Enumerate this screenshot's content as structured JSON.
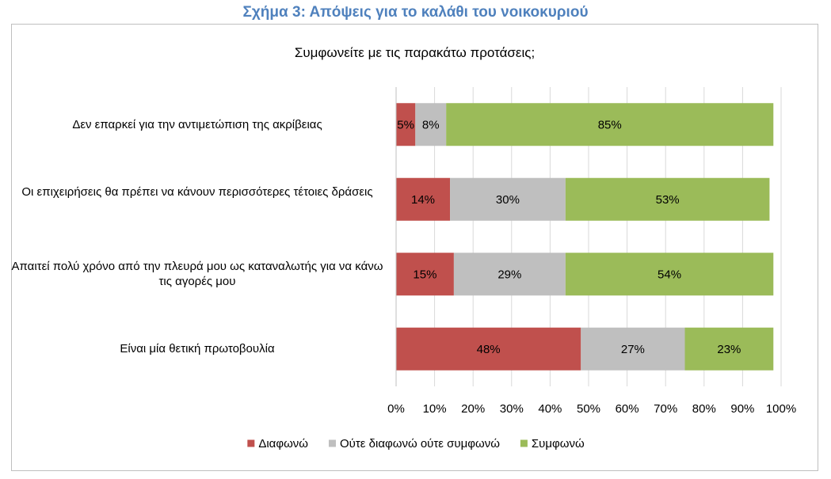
{
  "figure_title": "Σχήμα 3: Απόψεις για το καλάθι του νοικοκυριού",
  "chart_data": {
    "type": "bar",
    "orientation": "horizontal",
    "stacked": "percent",
    "title": "Συμφωνείτε με τις παρακάτω προτάσεις;",
    "categories": [
      "Δεν επαρκεί για την αντιμετώπιση της ακρίβειας",
      "Οι επιχειρήσεις θα πρέπει να κάνουν περισσότερες τέτοιες δράσεις",
      "Απαιτεί πολύ χρόνο από την πλευρά μου ως καταναλωτής για να κάνω τις αγορές μου",
      "Είναι μία θετική πρωτοβουλία"
    ],
    "series": [
      {
        "name": "Διαφωνώ",
        "color": "#c0504d",
        "values": [
          5,
          14,
          15,
          48
        ],
        "labels": [
          "5%",
          "14%",
          "15%",
          "48%"
        ]
      },
      {
        "name": "Ούτε διαφωνώ ούτε συμφωνώ",
        "color": "#bfbfbf",
        "values": [
          8,
          30,
          29,
          27
        ],
        "labels": [
          "8%",
          "30%",
          "29%",
          "27%"
        ]
      },
      {
        "name": "Συμφωνώ",
        "color": "#9bbb59",
        "values": [
          85,
          53,
          54,
          23
        ],
        "labels": [
          "85%",
          "53%",
          "54%",
          "23%"
        ]
      }
    ],
    "xlim": [
      0,
      100
    ],
    "xticks": [
      "0%",
      "10%",
      "20%",
      "30%",
      "40%",
      "50%",
      "60%",
      "70%",
      "80%",
      "90%",
      "100%"
    ],
    "grid": true,
    "legend": "bottom"
  }
}
